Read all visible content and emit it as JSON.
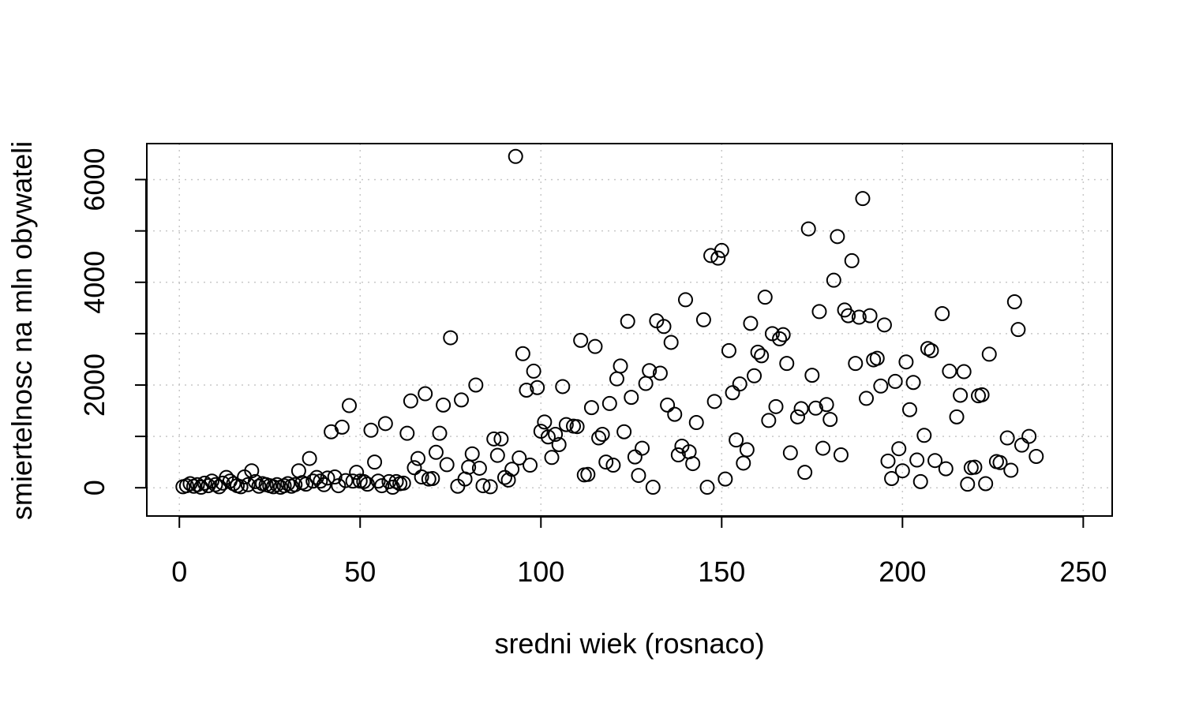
{
  "chart_data": {
    "type": "scatter",
    "title": "",
    "xlabel": "sredni wiek (rosnaco)",
    "ylabel": "smiertelnosc na mln obywateli",
    "xlim": [
      -9,
      258
    ],
    "ylim": [
      -550,
      6700
    ],
    "x_ticks": [
      0,
      50,
      100,
      150,
      200,
      250
    ],
    "x_tick_labels": [
      "0",
      "50",
      "100",
      "150",
      "200",
      "250"
    ],
    "y_ticks": [
      0,
      1000,
      2000,
      3000,
      4000,
      5000,
      6000
    ],
    "y_tick_labels": [
      "0",
      "",
      "2000",
      "",
      "4000",
      "",
      "6000"
    ],
    "grid": true,
    "marker": "open-circle",
    "points": [
      {
        "x": 1,
        "y": 20
      },
      {
        "x": 2,
        "y": 40
      },
      {
        "x": 3,
        "y": 80
      },
      {
        "x": 4,
        "y": 30
      },
      {
        "x": 5,
        "y": 60
      },
      {
        "x": 6,
        "y": 10
      },
      {
        "x": 7,
        "y": 90
      },
      {
        "x": 8,
        "y": 40
      },
      {
        "x": 9,
        "y": 130
      },
      {
        "x": 10,
        "y": 60
      },
      {
        "x": 11,
        "y": 20
      },
      {
        "x": 12,
        "y": 90
      },
      {
        "x": 13,
        "y": 200
      },
      {
        "x": 14,
        "y": 130
      },
      {
        "x": 15,
        "y": 80
      },
      {
        "x": 16,
        "y": 40
      },
      {
        "x": 17,
        "y": 20
      },
      {
        "x": 18,
        "y": 210
      },
      {
        "x": 19,
        "y": 60
      },
      {
        "x": 20,
        "y": 330
      },
      {
        "x": 21,
        "y": 120
      },
      {
        "x": 22,
        "y": 30
      },
      {
        "x": 23,
        "y": 80
      },
      {
        "x": 24,
        "y": 60
      },
      {
        "x": 25,
        "y": 40
      },
      {
        "x": 26,
        "y": 20
      },
      {
        "x": 27,
        "y": 60
      },
      {
        "x": 28,
        "y": 10
      },
      {
        "x": 29,
        "y": 40
      },
      {
        "x": 30,
        "y": 80
      },
      {
        "x": 31,
        "y": 30
      },
      {
        "x": 32,
        "y": 60
      },
      {
        "x": 33,
        "y": 330
      },
      {
        "x": 34,
        "y": 100
      },
      {
        "x": 35,
        "y": 70
      },
      {
        "x": 36,
        "y": 570
      },
      {
        "x": 37,
        "y": 130
      },
      {
        "x": 38,
        "y": 200
      },
      {
        "x": 39,
        "y": 130
      },
      {
        "x": 40,
        "y": 60
      },
      {
        "x": 41,
        "y": 190
      },
      {
        "x": 42,
        "y": 1090
      },
      {
        "x": 43,
        "y": 210
      },
      {
        "x": 44,
        "y": 40
      },
      {
        "x": 45,
        "y": 1180
      },
      {
        "x": 46,
        "y": 140
      },
      {
        "x": 47,
        "y": 1600
      },
      {
        "x": 48,
        "y": 130
      },
      {
        "x": 49,
        "y": 300
      },
      {
        "x": 50,
        "y": 130
      },
      {
        "x": 51,
        "y": 120
      },
      {
        "x": 52,
        "y": 70
      },
      {
        "x": 53,
        "y": 1120
      },
      {
        "x": 54,
        "y": 500
      },
      {
        "x": 55,
        "y": 130
      },
      {
        "x": 56,
        "y": 40
      },
      {
        "x": 57,
        "y": 1250
      },
      {
        "x": 58,
        "y": 120
      },
      {
        "x": 59,
        "y": 10
      },
      {
        "x": 60,
        "y": 120
      },
      {
        "x": 61,
        "y": 80
      },
      {
        "x": 62,
        "y": 90
      },
      {
        "x": 63,
        "y": 1060
      },
      {
        "x": 64,
        "y": 1690
      },
      {
        "x": 65,
        "y": 390
      },
      {
        "x": 66,
        "y": 570
      },
      {
        "x": 67,
        "y": 210
      },
      {
        "x": 68,
        "y": 1830
      },
      {
        "x": 69,
        "y": 170
      },
      {
        "x": 70,
        "y": 180
      },
      {
        "x": 71,
        "y": 690
      },
      {
        "x": 72,
        "y": 1060
      },
      {
        "x": 73,
        "y": 1610
      },
      {
        "x": 74,
        "y": 450
      },
      {
        "x": 75,
        "y": 2920
      },
      {
        "x": 77,
        "y": 30
      },
      {
        "x": 78,
        "y": 1710
      },
      {
        "x": 79,
        "y": 170
      },
      {
        "x": 80,
        "y": 400
      },
      {
        "x": 81,
        "y": 660
      },
      {
        "x": 82,
        "y": 2000
      },
      {
        "x": 83,
        "y": 380
      },
      {
        "x": 84,
        "y": 40
      },
      {
        "x": 86,
        "y": 20
      },
      {
        "x": 87,
        "y": 950
      },
      {
        "x": 88,
        "y": 630
      },
      {
        "x": 89,
        "y": 950
      },
      {
        "x": 90,
        "y": 200
      },
      {
        "x": 91,
        "y": 150
      },
      {
        "x": 92,
        "y": 360
      },
      {
        "x": 93,
        "y": 6450
      },
      {
        "x": 94,
        "y": 580
      },
      {
        "x": 95,
        "y": 2610
      },
      {
        "x": 96,
        "y": 1900
      },
      {
        "x": 97,
        "y": 440
      },
      {
        "x": 98,
        "y": 2270
      },
      {
        "x": 99,
        "y": 1950
      },
      {
        "x": 100,
        "y": 1100
      },
      {
        "x": 101,
        "y": 1280
      },
      {
        "x": 102,
        "y": 990
      },
      {
        "x": 103,
        "y": 590
      },
      {
        "x": 104,
        "y": 1040
      },
      {
        "x": 105,
        "y": 840
      },
      {
        "x": 106,
        "y": 1970
      },
      {
        "x": 107,
        "y": 1230
      },
      {
        "x": 109,
        "y": 1200
      },
      {
        "x": 110,
        "y": 1190
      },
      {
        "x": 111,
        "y": 2870
      },
      {
        "x": 112,
        "y": 250
      },
      {
        "x": 113,
        "y": 260
      },
      {
        "x": 114,
        "y": 1560
      },
      {
        "x": 115,
        "y": 2750
      },
      {
        "x": 116,
        "y": 970
      },
      {
        "x": 117,
        "y": 1040
      },
      {
        "x": 118,
        "y": 500
      },
      {
        "x": 119,
        "y": 1640
      },
      {
        "x": 120,
        "y": 440
      },
      {
        "x": 121,
        "y": 2120
      },
      {
        "x": 122,
        "y": 2370
      },
      {
        "x": 123,
        "y": 1090
      },
      {
        "x": 124,
        "y": 3240
      },
      {
        "x": 125,
        "y": 1760
      },
      {
        "x": 126,
        "y": 600
      },
      {
        "x": 127,
        "y": 240
      },
      {
        "x": 128,
        "y": 770
      },
      {
        "x": 129,
        "y": 2030
      },
      {
        "x": 130,
        "y": 2280
      },
      {
        "x": 131,
        "y": 10
      },
      {
        "x": 132,
        "y": 3250
      },
      {
        "x": 133,
        "y": 2230
      },
      {
        "x": 134,
        "y": 3140
      },
      {
        "x": 135,
        "y": 1610
      },
      {
        "x": 136,
        "y": 2830
      },
      {
        "x": 137,
        "y": 1430
      },
      {
        "x": 138,
        "y": 640
      },
      {
        "x": 139,
        "y": 810
      },
      {
        "x": 140,
        "y": 3660
      },
      {
        "x": 141,
        "y": 700
      },
      {
        "x": 142,
        "y": 470
      },
      {
        "x": 143,
        "y": 1270
      },
      {
        "x": 145,
        "y": 3270
      },
      {
        "x": 146,
        "y": 10
      },
      {
        "x": 147,
        "y": 4520
      },
      {
        "x": 148,
        "y": 1680
      },
      {
        "x": 149,
        "y": 4470
      },
      {
        "x": 150,
        "y": 4620
      },
      {
        "x": 151,
        "y": 170
      },
      {
        "x": 152,
        "y": 2670
      },
      {
        "x": 153,
        "y": 1850
      },
      {
        "x": 154,
        "y": 930
      },
      {
        "x": 155,
        "y": 2020
      },
      {
        "x": 156,
        "y": 480
      },
      {
        "x": 157,
        "y": 740
      },
      {
        "x": 158,
        "y": 3200
      },
      {
        "x": 159,
        "y": 2180
      },
      {
        "x": 160,
        "y": 2640
      },
      {
        "x": 161,
        "y": 2570
      },
      {
        "x": 162,
        "y": 3710
      },
      {
        "x": 163,
        "y": 1310
      },
      {
        "x": 164,
        "y": 3000
      },
      {
        "x": 165,
        "y": 1580
      },
      {
        "x": 166,
        "y": 2900
      },
      {
        "x": 167,
        "y": 2980
      },
      {
        "x": 168,
        "y": 2420
      },
      {
        "x": 169,
        "y": 680
      },
      {
        "x": 171,
        "y": 1380
      },
      {
        "x": 172,
        "y": 1540
      },
      {
        "x": 173,
        "y": 300
      },
      {
        "x": 174,
        "y": 5040
      },
      {
        "x": 175,
        "y": 2190
      },
      {
        "x": 176,
        "y": 1550
      },
      {
        "x": 177,
        "y": 3430
      },
      {
        "x": 178,
        "y": 770
      },
      {
        "x": 179,
        "y": 1620
      },
      {
        "x": 180,
        "y": 1330
      },
      {
        "x": 181,
        "y": 4040
      },
      {
        "x": 182,
        "y": 4890
      },
      {
        "x": 183,
        "y": 640
      },
      {
        "x": 184,
        "y": 3460
      },
      {
        "x": 185,
        "y": 3350
      },
      {
        "x": 186,
        "y": 4420
      },
      {
        "x": 187,
        "y": 2420
      },
      {
        "x": 188,
        "y": 3320
      },
      {
        "x": 189,
        "y": 5630
      },
      {
        "x": 190,
        "y": 1740
      },
      {
        "x": 191,
        "y": 3350
      },
      {
        "x": 192,
        "y": 2490
      },
      {
        "x": 193,
        "y": 2520
      },
      {
        "x": 194,
        "y": 1980
      },
      {
        "x": 195,
        "y": 3170
      },
      {
        "x": 196,
        "y": 520
      },
      {
        "x": 197,
        "y": 180
      },
      {
        "x": 198,
        "y": 2070
      },
      {
        "x": 199,
        "y": 760
      },
      {
        "x": 200,
        "y": 330
      },
      {
        "x": 201,
        "y": 2450
      },
      {
        "x": 202,
        "y": 1520
      },
      {
        "x": 203,
        "y": 2050
      },
      {
        "x": 204,
        "y": 540
      },
      {
        "x": 205,
        "y": 120
      },
      {
        "x": 206,
        "y": 1020
      },
      {
        "x": 207,
        "y": 2710
      },
      {
        "x": 208,
        "y": 2670
      },
      {
        "x": 209,
        "y": 530
      },
      {
        "x": 211,
        "y": 3390
      },
      {
        "x": 212,
        "y": 370
      },
      {
        "x": 213,
        "y": 2270
      },
      {
        "x": 215,
        "y": 1380
      },
      {
        "x": 216,
        "y": 1800
      },
      {
        "x": 217,
        "y": 2260
      },
      {
        "x": 218,
        "y": 70
      },
      {
        "x": 219,
        "y": 390
      },
      {
        "x": 220,
        "y": 400
      },
      {
        "x": 221,
        "y": 1790
      },
      {
        "x": 222,
        "y": 1810
      },
      {
        "x": 223,
        "y": 80
      },
      {
        "x": 224,
        "y": 2600
      },
      {
        "x": 226,
        "y": 510
      },
      {
        "x": 227,
        "y": 490
      },
      {
        "x": 229,
        "y": 970
      },
      {
        "x": 230,
        "y": 340
      },
      {
        "x": 231,
        "y": 3620
      },
      {
        "x": 232,
        "y": 3080
      },
      {
        "x": 233,
        "y": 830
      },
      {
        "x": 235,
        "y": 1000
      },
      {
        "x": 237,
        "y": 610
      }
    ]
  }
}
